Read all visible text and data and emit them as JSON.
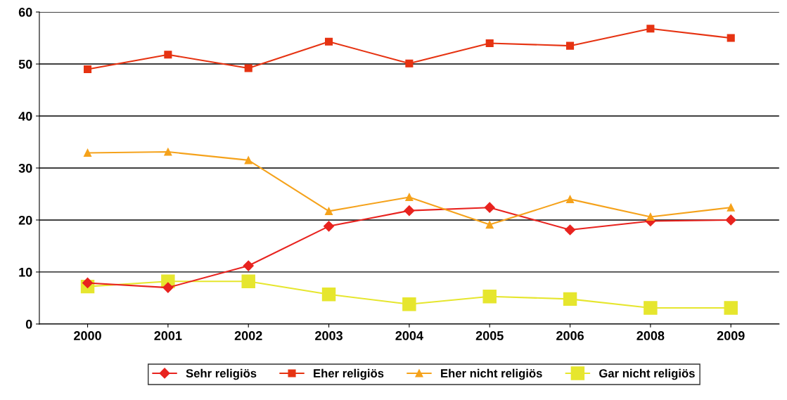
{
  "chart_data": {
    "type": "line",
    "categories": [
      "2000",
      "2001",
      "2002",
      "2003",
      "2004",
      "2005",
      "2006",
      "2008",
      "2009"
    ],
    "series": [
      {
        "name": "Sehr religiös",
        "color": "#e8231f",
        "marker": "diamond",
        "values": [
          7.9,
          7,
          11.2,
          18.8,
          21.8,
          22.4,
          18.1,
          19.8,
          20
        ]
      },
      {
        "name": "Eher religiös",
        "color": "#e63312",
        "marker": "square",
        "values": [
          49,
          51.8,
          49.2,
          54.3,
          50.1,
          54,
          53.5,
          56.8,
          55
        ]
      },
      {
        "name": "Eher nicht religiös",
        "color": "#f5a21b",
        "marker": "triangle",
        "values": [
          32.9,
          33.1,
          31.5,
          21.7,
          24.4,
          19.1,
          24,
          20.6,
          22.4
        ]
      },
      {
        "name": "Gar nicht religiös",
        "color": "#e6e62e",
        "marker": "square",
        "values": [
          7.2,
          8.2,
          8.2,
          5.7,
          3.8,
          5.3,
          4.8,
          3.1,
          3.1
        ]
      }
    ],
    "ylim": [
      0,
      60
    ],
    "yticks": [
      0,
      10,
      20,
      30,
      40,
      50,
      60
    ],
    "grid": "y",
    "legend": "bottom",
    "line_style": "solid"
  }
}
